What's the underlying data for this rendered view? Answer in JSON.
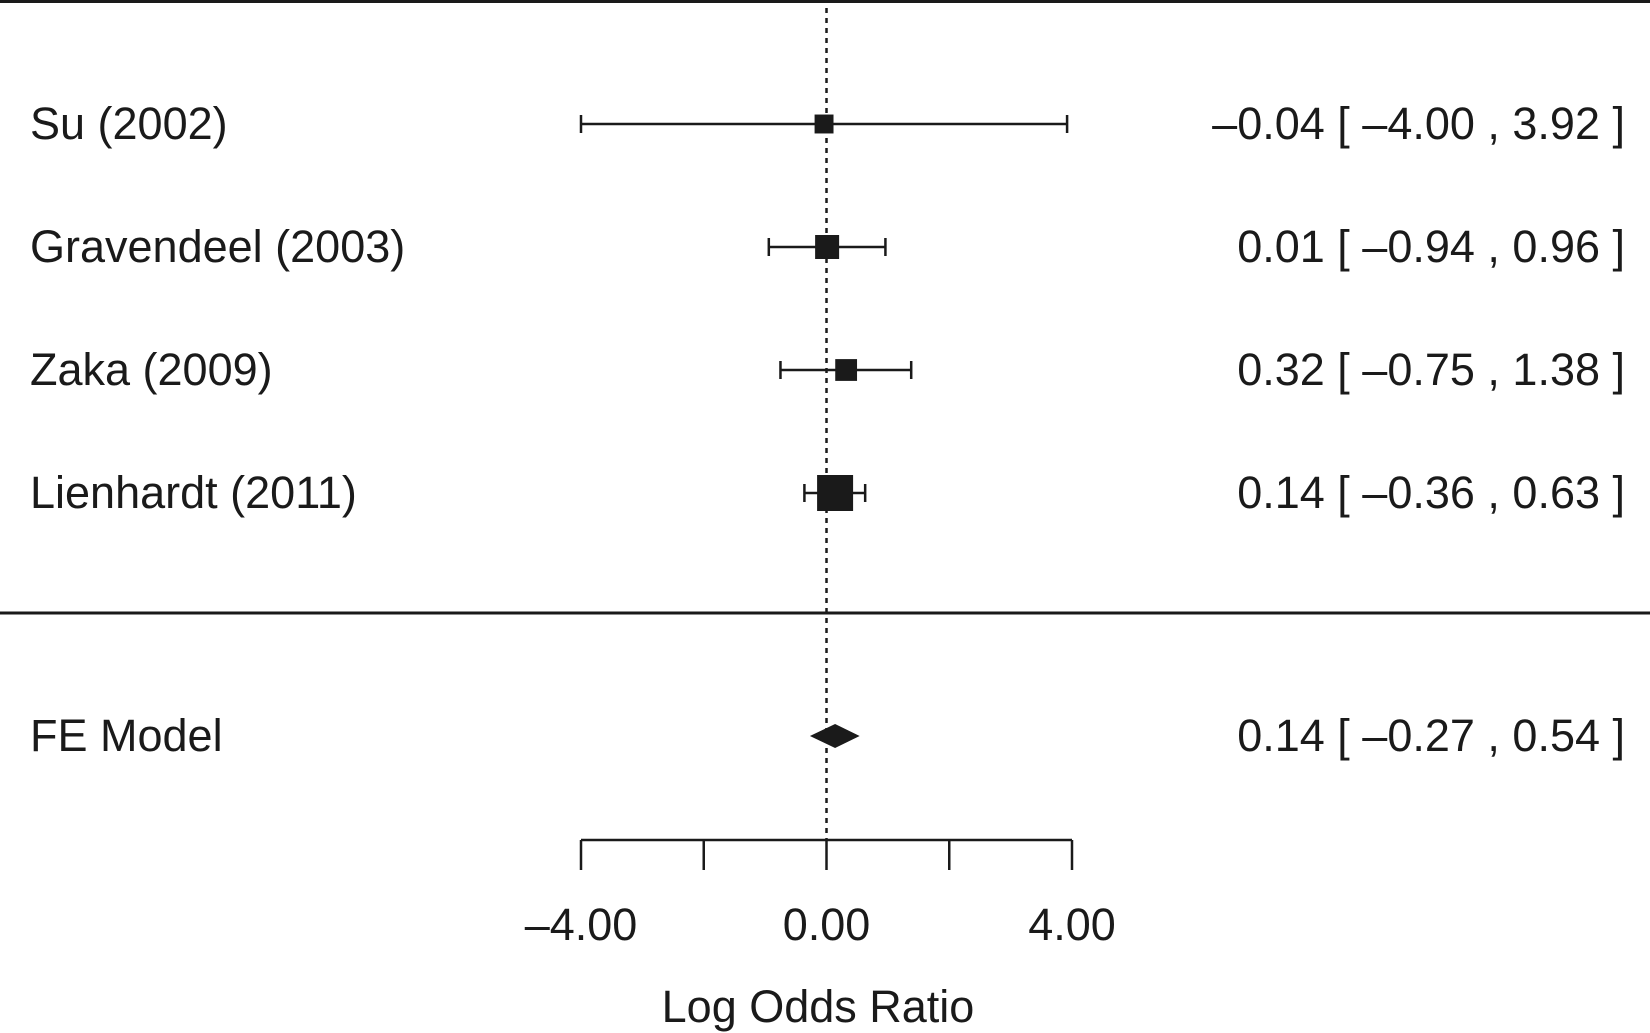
{
  "chart_data": {
    "type": "forest",
    "title": "",
    "xlabel": "Log Odds Ratio",
    "xlim": [
      -4.0,
      4.0
    ],
    "xticks": [
      -4.0,
      -2.0,
      0.0,
      2.0,
      4.0
    ],
    "xtick_labels": [
      "–4.00",
      "0.00",
      "4.00"
    ],
    "xtick_label_values": [
      -4.0,
      0.0,
      4.0
    ],
    "reference_line": 0.0,
    "studies": [
      {
        "label": "Su (2002)",
        "estimate": -0.04,
        "ci_lower": -4.0,
        "ci_upper": 3.92,
        "weight": 1,
        "text": "–0.04 [ –4.00 , 3.92 ]"
      },
      {
        "label": "Gravendeel (2003)",
        "estimate": 0.01,
        "ci_lower": -0.94,
        "ci_upper": 0.96,
        "weight": 3,
        "text": "0.01 [ –0.94 , 0.96 ]"
      },
      {
        "label": "Zaka (2009)",
        "estimate": 0.32,
        "ci_lower": -0.75,
        "ci_upper": 1.38,
        "weight": 2,
        "text": "0.32 [ –0.75 , 1.38 ]"
      },
      {
        "label": "Lienhardt (2011)",
        "estimate": 0.14,
        "ci_lower": -0.36,
        "ci_upper": 0.63,
        "weight": 12,
        "text": "0.14 [ –0.36 , 0.63 ]"
      }
    ],
    "summary": {
      "label": "FE Model",
      "estimate": 0.14,
      "ci_lower": -0.27,
      "ci_upper": 0.54,
      "text": "0.14 [ –0.27 , 0.54 ]"
    },
    "colors": {
      "ink": "#1a1a1a",
      "background": "#ffffff"
    }
  }
}
